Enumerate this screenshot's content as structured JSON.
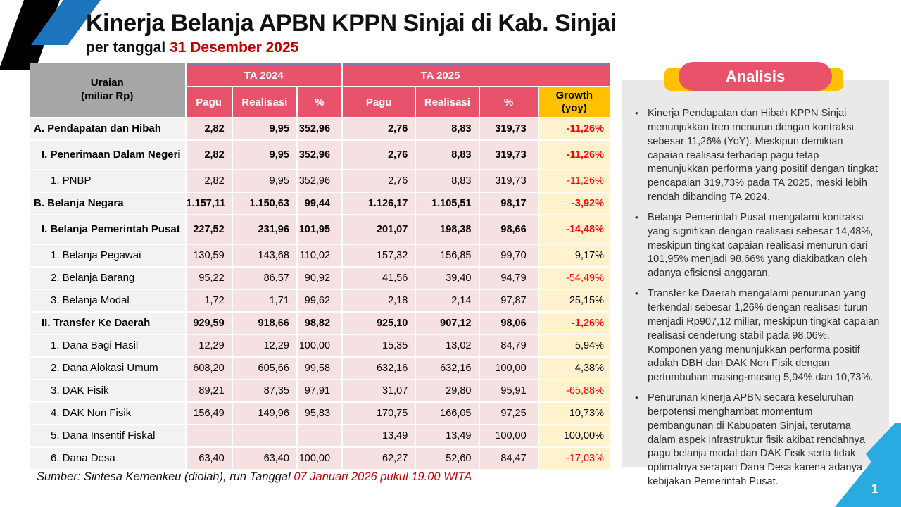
{
  "slide": {
    "title": "Kinerja Belanja APBN KPPN Sinjai di Kab. Sinjai",
    "subtitle_prefix": "per tanggal ",
    "subtitle_date": "31 Desember 2025",
    "footer_prefix": "Sumber: Sintesa Kemenkeu (diolah), run Tanggal ",
    "footer_date": "07 Januari 2026 pukul 19.00 WITA",
    "page_number": "1"
  },
  "colors": {
    "rose": "#E8526B",
    "gold": "#FFC000",
    "growth_bg": "#FFF2CC",
    "numeric_bg": "#F5E1E1",
    "label_bg": "#F2F2F2",
    "corner_gray": "#A6A6A6",
    "panel_gray": "#E9E9E9",
    "negative_red": "#FF0000",
    "accent_date_red": "#C00000",
    "stripe_blue": "#1C75BC",
    "stripe_black": "#000000",
    "ribbon_blue": "#29ABE2",
    "purple_line": "#8878B0"
  },
  "table": {
    "corner": {
      "line1": "Uraian",
      "line2": "(miliar Rp)"
    },
    "year_groups": [
      "TA 2024",
      "TA 2025"
    ],
    "sub_headers": [
      "Pagu",
      "Realisasi",
      "%"
    ],
    "growth": {
      "line1": "Growth",
      "line2": "(yoy)"
    },
    "rows": [
      {
        "label": "A. Pendapatan dan Hibah",
        "indent": 0,
        "bold": true,
        "tall": false,
        "values": [
          "2,82",
          "9,95",
          "352,96",
          "2,76",
          "8,83",
          "319,73"
        ],
        "growth": "-11,26%",
        "negative": true
      },
      {
        "label": "I. Penerimaan Dalam Negeri",
        "indent": 1,
        "bold": true,
        "tall": true,
        "values": [
          "2,82",
          "9,95",
          "352,96",
          "2,76",
          "8,83",
          "319,73"
        ],
        "growth": "-11,26%",
        "negative": true
      },
      {
        "label": "1. PNBP",
        "indent": 2,
        "bold": false,
        "tall": false,
        "values": [
          "2,82",
          "9,95",
          "352,96",
          "2,76",
          "8,83",
          "319,73"
        ],
        "growth": "-11,26%",
        "negative": true
      },
      {
        "label": "B. Belanja Negara",
        "indent": 0,
        "bold": true,
        "tall": false,
        "values": [
          "1.157,11",
          "1.150,63",
          "99,44",
          "1.126,17",
          "1.105,51",
          "98,17"
        ],
        "growth": "-3,92%",
        "negative": true
      },
      {
        "label": "I. Belanja Pemerintah Pusat",
        "indent": 1,
        "bold": true,
        "tall": true,
        "values": [
          "227,52",
          "231,96",
          "101,95",
          "201,07",
          "198,38",
          "98,66"
        ],
        "growth": "-14,48%",
        "negative": true
      },
      {
        "label": "1. Belanja Pegawai",
        "indent": 2,
        "bold": false,
        "tall": false,
        "values": [
          "130,59",
          "143,68",
          "110,02",
          "157,32",
          "156,85",
          "99,70"
        ],
        "growth": "9,17%",
        "negative": false
      },
      {
        "label": "2. Belanja Barang",
        "indent": 2,
        "bold": false,
        "tall": false,
        "values": [
          "95,22",
          "86,57",
          "90,92",
          "41,56",
          "39,40",
          "94,79"
        ],
        "growth": "-54,49%",
        "negative": true
      },
      {
        "label": "3. Belanja Modal",
        "indent": 2,
        "bold": false,
        "tall": false,
        "values": [
          "1,72",
          "1,71",
          "99,62",
          "2,18",
          "2,14",
          "97,87"
        ],
        "growth": "25,15%",
        "negative": false
      },
      {
        "label": "II. Transfer Ke Daerah",
        "indent": 1,
        "bold": true,
        "tall": false,
        "values": [
          "929,59",
          "918,66",
          "98,82",
          "925,10",
          "907,12",
          "98,06"
        ],
        "growth": "-1,26%",
        "negative": true
      },
      {
        "label": "1. Dana Bagi Hasil",
        "indent": 2,
        "bold": false,
        "tall": false,
        "values": [
          "12,29",
          "12,29",
          "100,00",
          "15,35",
          "13,02",
          "84,79"
        ],
        "growth": "5,94%",
        "negative": false
      },
      {
        "label": "2. Dana Alokasi Umum",
        "indent": 2,
        "bold": false,
        "tall": false,
        "values": [
          "608,20",
          "605,66",
          "99,58",
          "632,16",
          "632,16",
          "100,00"
        ],
        "growth": "4,38%",
        "negative": false
      },
      {
        "label": "3. DAK Fisik",
        "indent": 2,
        "bold": false,
        "tall": false,
        "values": [
          "89,21",
          "87,35",
          "97,91",
          "31,07",
          "29,80",
          "95,91"
        ],
        "growth": "-65,88%",
        "negative": true
      },
      {
        "label": "4. DAK Non Fisik",
        "indent": 2,
        "bold": false,
        "tall": false,
        "values": [
          "156,49",
          "149,96",
          "95,83",
          "170,75",
          "166,05",
          "97,25"
        ],
        "growth": "10,73%",
        "negative": false
      },
      {
        "label": "5. Dana Insentif Fiskal",
        "indent": 2,
        "bold": false,
        "tall": false,
        "values": [
          "",
          "",
          "",
          "13,49",
          "13,49",
          "100,00"
        ],
        "growth": "100,00%",
        "negative": false
      },
      {
        "label": "6. Dana Desa",
        "indent": 2,
        "bold": false,
        "tall": false,
        "values": [
          "63,40",
          "63,40",
          "100,00",
          "62,27",
          "52,60",
          "84,47"
        ],
        "growth": "-17,03%",
        "negative": true
      }
    ]
  },
  "analysis": {
    "header": "Analisis",
    "bullets": [
      "Kinerja Pendapatan dan Hibah KPPN Sinjai menunjukkan tren menurun dengan kontraksi sebesar 11,26% (YoY). Meskipun demikian capaian realisasi terhadap pagu tetap menunjukkan performa yang positif dengan tingkat pencapaian 319,73% pada TA 2025, meski lebih rendah dibanding TA 2024.",
      "Belanja Pemerintah Pusat mengalami kontraksi yang signifikan dengan realisasi sebesar 14,48%, meskipun tingkat capaian realisasi menurun dari 101,95% menjadi 98,66% yang diakibatkan oleh adanya efisiensi anggaran.",
      "Transfer ke Daerah mengalami penurunan yang terkendali sebesar 1,26% dengan realisasi turun menjadi Rp907,12 miliar, meskipun tingkat capaian realisasi cenderung stabil pada 98,06%. Komponen yang menunjukkan performa positif adalah DBH dan DAK Non Fisik dengan pertumbuhan masing-masing 5,94% dan 10,73%.",
      "Penurunan kinerja APBN secara keseluruhan berpotensi menghambat momentum pembangunan di Kabupaten Sinjai, terutama dalam aspek infrastruktur fisik akibat rendahnya pagu belanja modal dan DAK Fisik serta tidak optimalnya serapan Dana Desa karena adanya kebijakan Pemerintah Pusat."
    ]
  }
}
